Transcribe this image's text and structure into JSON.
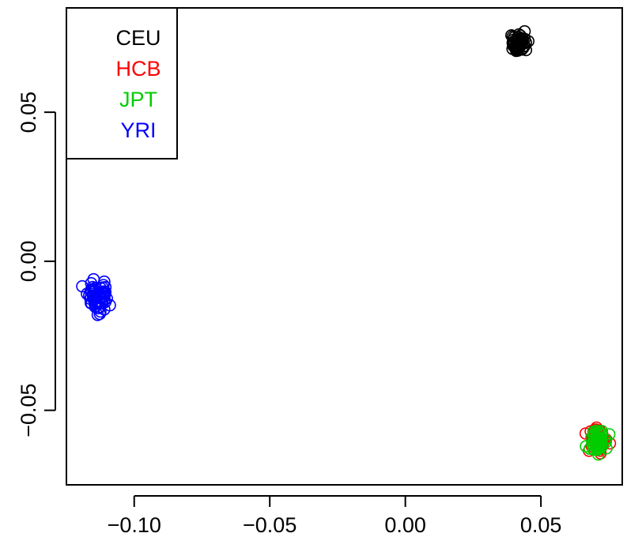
{
  "chart_data": {
    "type": "scatter",
    "title": "",
    "xlabel": "",
    "ylabel": "",
    "xlim": [
      -0.125,
      0.08
    ],
    "ylim": [
      -0.075,
      0.085
    ],
    "x_ticks": [
      -0.1,
      -0.05,
      0.0,
      0.05
    ],
    "x_tick_labels": [
      "−0.10",
      "−0.05",
      "0.00",
      "0.05"
    ],
    "y_ticks": [
      -0.05,
      0.0,
      0.05
    ],
    "y_tick_labels": [
      "−0.05",
      "0.00",
      "0.05"
    ],
    "grid": false,
    "legend": {
      "position": "top-left",
      "entries": [
        "CEU",
        "HCB",
        "JPT",
        "YRI"
      ]
    },
    "marker": "open-circle",
    "series": [
      {
        "name": "CEU",
        "color": "#000000",
        "center": [
          0.0415,
          0.073
        ],
        "spread": [
          0.0016,
          0.0017
        ],
        "count": 60
      },
      {
        "name": "HCB",
        "color": "#ff0000",
        "center": [
          0.0712,
          -0.0595
        ],
        "spread": [
          0.0018,
          0.0019
        ],
        "count": 45
      },
      {
        "name": "JPT",
        "color": "#00cd00",
        "center": [
          0.0705,
          -0.0605
        ],
        "spread": [
          0.0016,
          0.0019
        ],
        "count": 45
      },
      {
        "name": "YRI",
        "color": "#0000ff",
        "center": [
          -0.1135,
          -0.0118
        ],
        "spread": [
          0.0023,
          0.0025
        ],
        "count": 60
      }
    ]
  }
}
